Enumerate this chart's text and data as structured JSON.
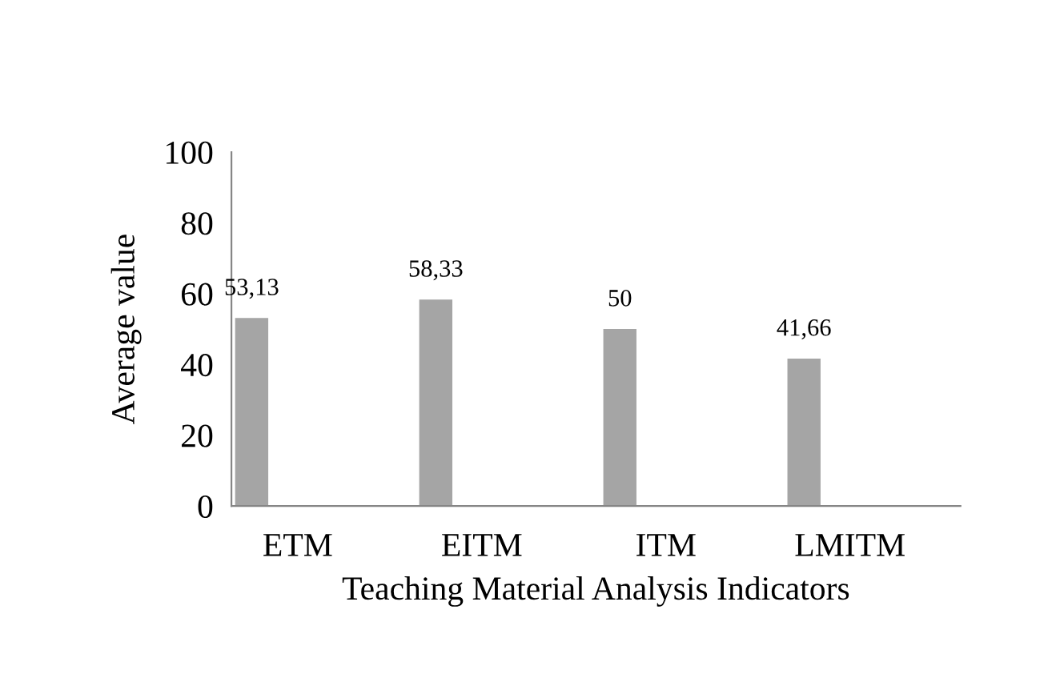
{
  "chart_data": {
    "type": "bar",
    "xlabel": "Teaching Material Analysis Indicators",
    "ylabel": "Average value",
    "categories": [
      "ETM",
      "EITM",
      "ITM",
      "LMITM"
    ],
    "values": [
      53.13,
      58.33,
      50,
      41.66
    ],
    "value_labels": [
      "53,13",
      "58,33",
      "50",
      "41,66"
    ],
    "color": "#a5a5a5",
    "ylim": [
      0,
      100
    ],
    "yticks": [
      0,
      20,
      40,
      60,
      80,
      100
    ],
    "grid": false
  }
}
